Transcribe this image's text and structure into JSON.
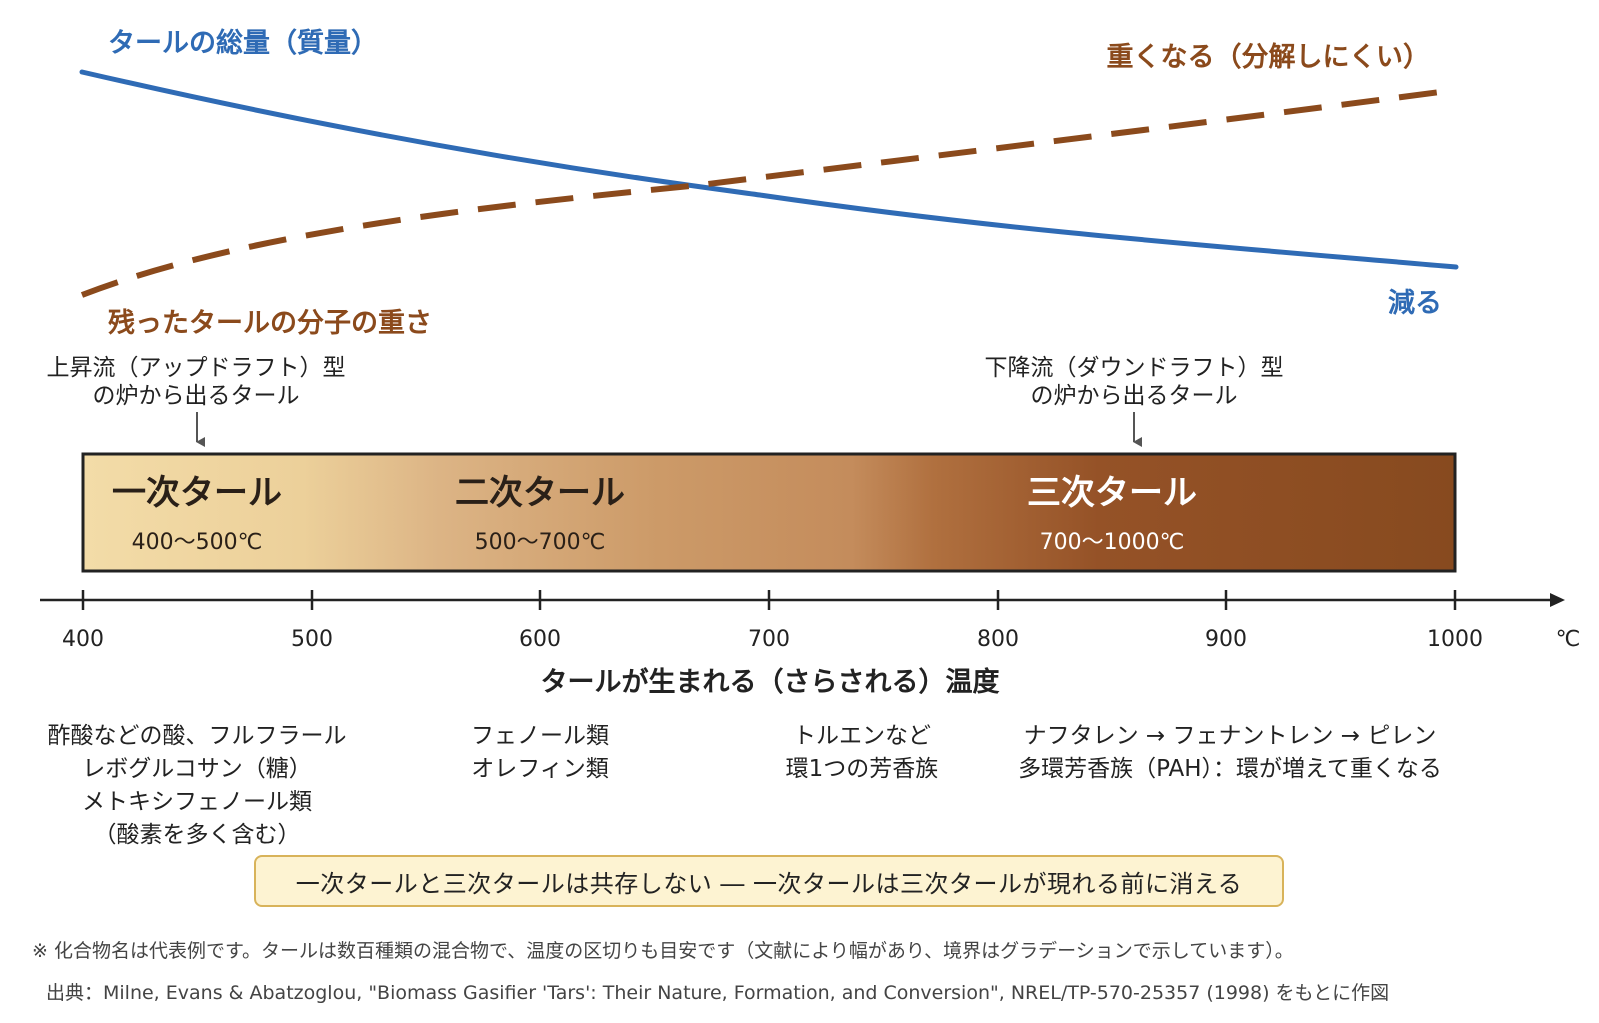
{
  "curves": {
    "tar_total_label": "タールの総量（質量）",
    "tar_total_end_label": "減る",
    "molecule_weight_label": "残ったタールの分子の重さ",
    "molecule_weight_end_label": "重くなる（分解しにくい）",
    "tar_total_color": "#2f6bb5",
    "molecule_weight_color": "#8b4a1c"
  },
  "reactors": {
    "updraft_line1": "上昇流（アップドラフト）型",
    "updraft_line2": "の炉から出るタール",
    "downdraft_line1": "下降流（ダウンドラフト）型",
    "downdraft_line2": "の炉から出るタール"
  },
  "bands": [
    {
      "title": "一次タール",
      "range": "400〜500℃"
    },
    {
      "title": "二次タール",
      "range": "500〜700℃"
    },
    {
      "title": "三次タール",
      "range": "700〜1000℃"
    }
  ],
  "band_colors": [
    "#f3dca8",
    "#c9905e",
    "#8b4a1c"
  ],
  "axis": {
    "ticks": [
      "400",
      "500",
      "600",
      "700",
      "800",
      "900",
      "1000"
    ],
    "unit": "℃",
    "title": "タールが生まれる（さらされる）温度"
  },
  "compounds": {
    "primary": [
      "酢酸などの酸、フルフラール",
      "レボグルコサン（糖）",
      "メトキシフェノール類",
      "（酸素を多く含む）"
    ],
    "secondary": [
      "フェノール類",
      "オレフィン類"
    ],
    "aromatic": [
      "トルエンなど",
      "環1つの芳香族"
    ],
    "tertiary": [
      "ナフタレン → フェナントレン → ピレン",
      "多環芳香族（PAH）：環が増えて重くなる"
    ]
  },
  "note": "一次タールと三次タールは共存しない ― 一次タールは三次タールが現れる前に消える",
  "footnotes": {
    "remark": "※ 化合物名は代表例です。タールは数百種類の混合物で、温度の区切りも目安です（文献により幅があり、境界はグラデーションで示しています）。",
    "source": "出典：Milne, Evans & Abatzoglou, \"Biomass Gasifier 'Tars': Their Nature, Formation, and Conversion\", NREL/TP-570-25357 (1998) をもとに作図"
  }
}
